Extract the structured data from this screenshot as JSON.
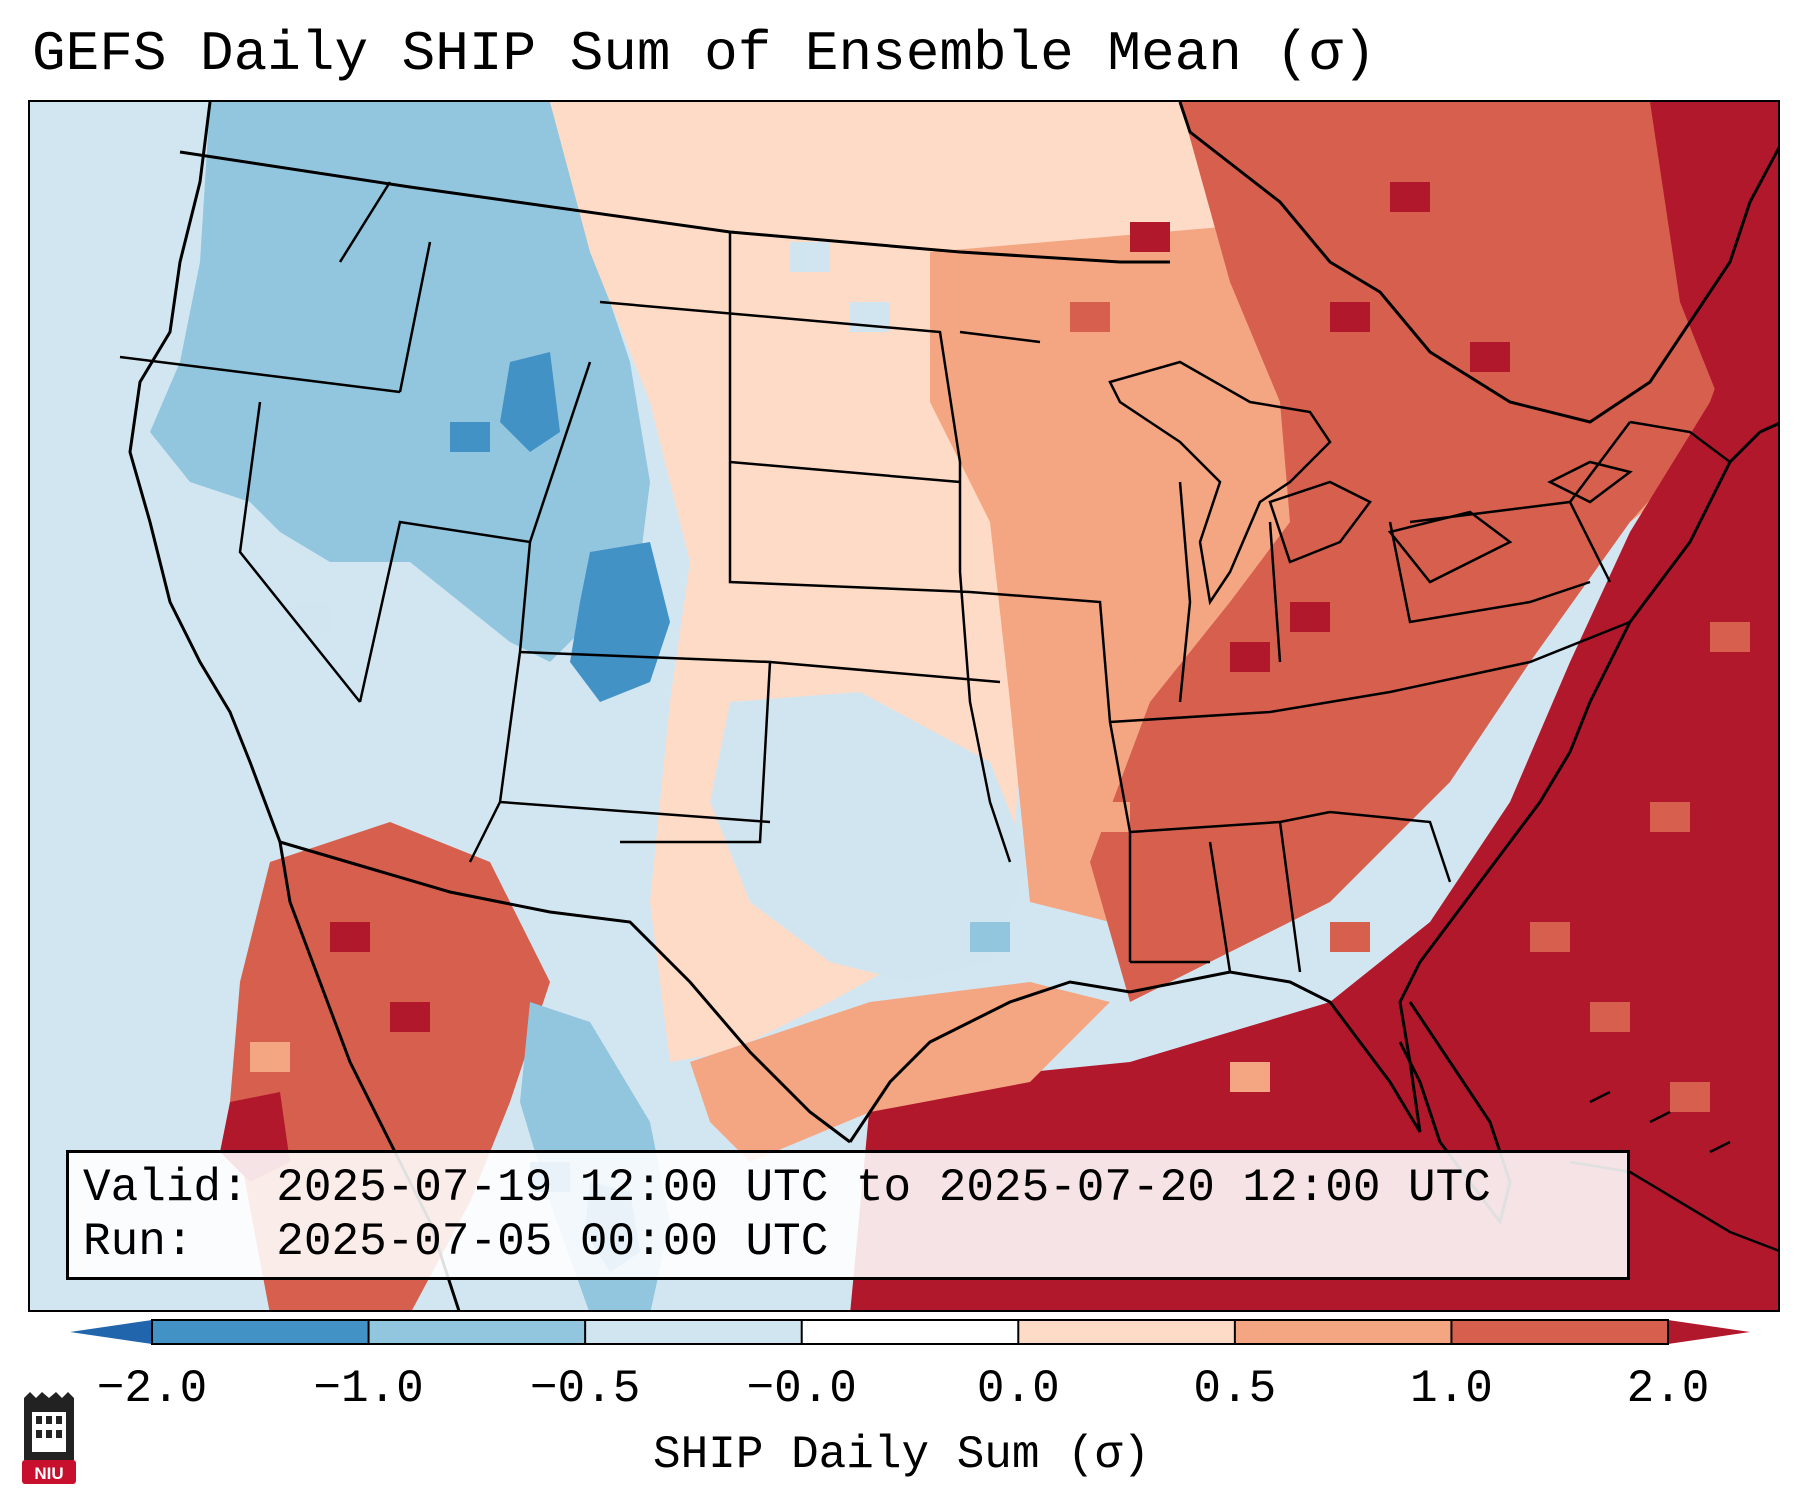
{
  "title": "GEFS Daily SHIP Sum of Ensemble Mean (σ)",
  "info": {
    "valid_label": "Valid:",
    "valid_value": "2025-07-19 12:00 UTC to 2025-07-20 12:00 UTC",
    "run_label": "Run:",
    "run_value": "2025-07-05 00:00 UTC"
  },
  "colorbar": {
    "label": "SHIP Daily Sum (σ)",
    "tick_labels": [
      "−2.0",
      "−1.0",
      "−0.5",
      "−0.0",
      "0.0",
      "0.5",
      "1.0",
      "2.0"
    ],
    "bins": [
      {
        "range": "-2.0 to -1.0",
        "color": "#4292c6"
      },
      {
        "range": "-1.0 to -0.5",
        "color": "#92c5de"
      },
      {
        "range": "-0.5 to -0.0",
        "color": "#d1e5f0"
      },
      {
        "range": "-0.0 to 0.0",
        "color": "#ffffff"
      },
      {
        "range": "0.0 to 0.5",
        "color": "#fddbc7"
      },
      {
        "range": "0.5 to 1.0",
        "color": "#f4a582"
      },
      {
        "range": "1.0 to 2.0",
        "color": "#d6604d"
      }
    ],
    "under_color": "#2166ac",
    "over_color": "#b2182b"
  },
  "map": {
    "projection": "lambert-conformal-conus",
    "colors": {
      "ocean_west": "#d2e6f1",
      "ocean_east": "#b2182b",
      "land_outline": "#000000"
    }
  },
  "logo": {
    "text": "NIU",
    "icon": "niu-logo-icon"
  }
}
